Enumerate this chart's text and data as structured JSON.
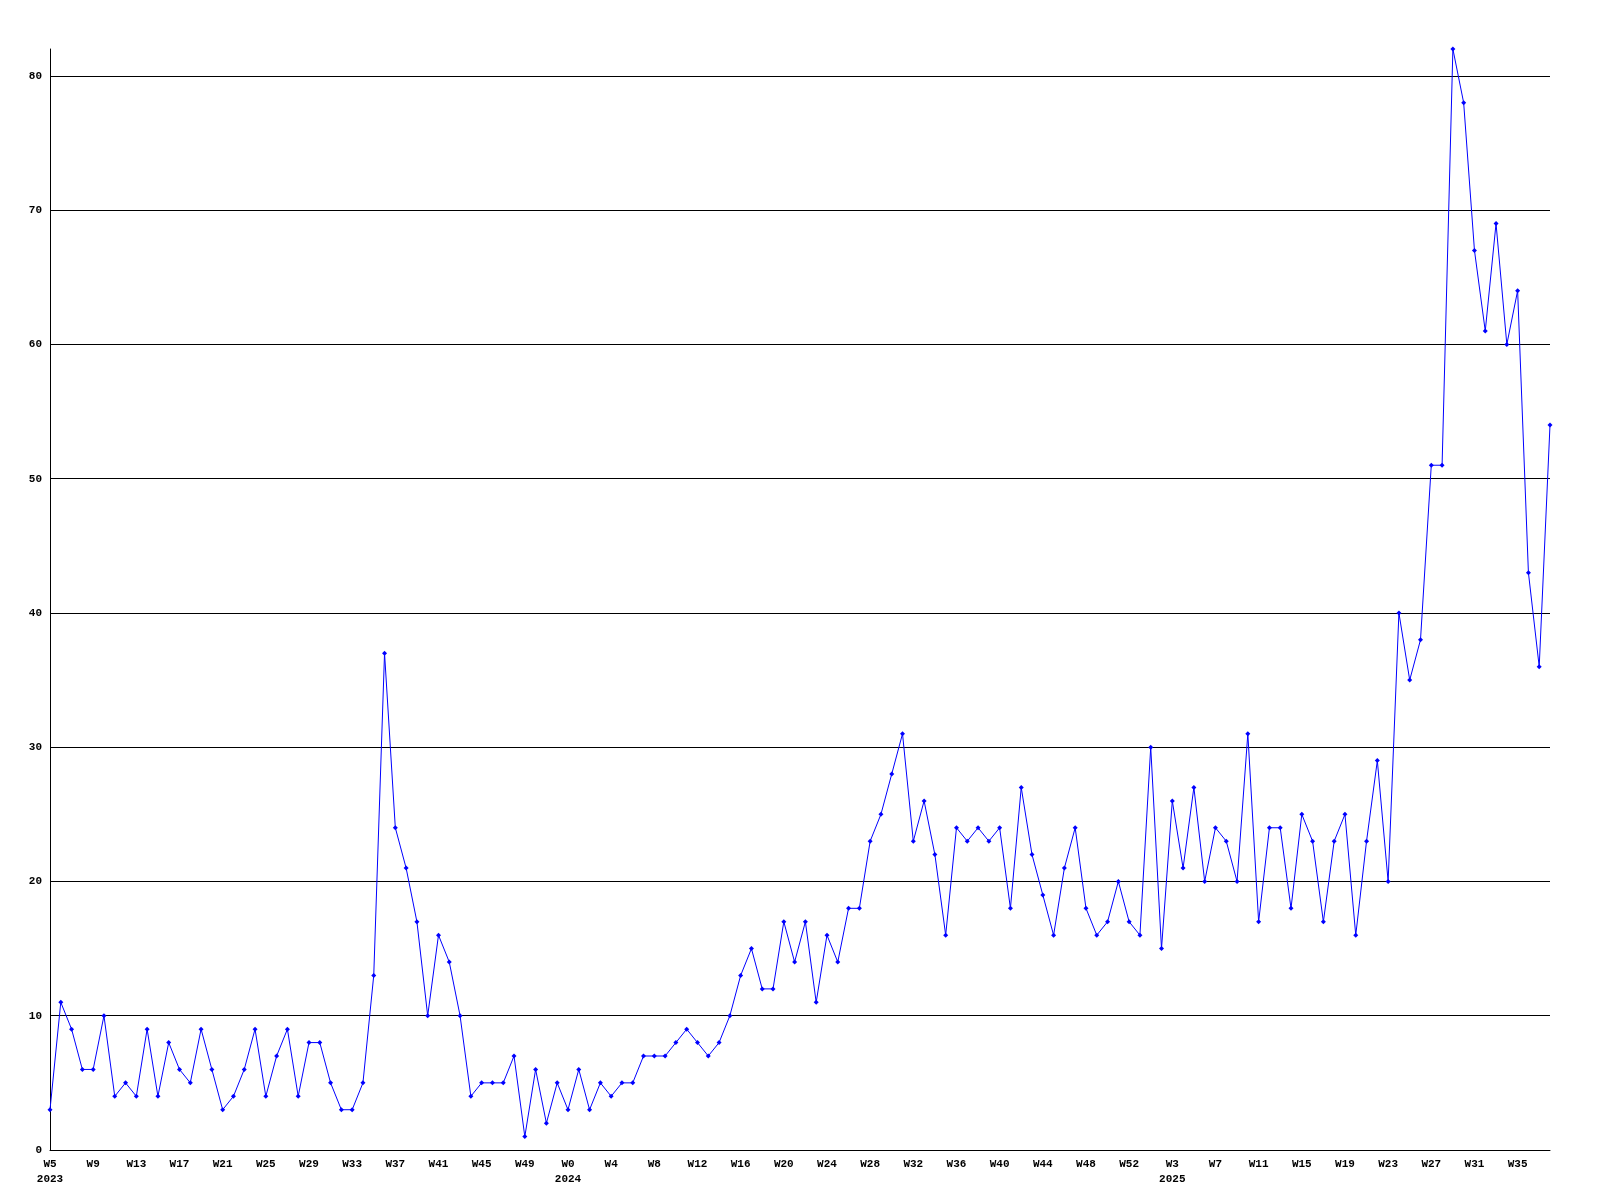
{
  "chart_data": {
    "type": "line",
    "categories": [
      "W5\n2023",
      null,
      null,
      null,
      "W9",
      null,
      null,
      null,
      "W13",
      null,
      null,
      null,
      "W17",
      null,
      null,
      null,
      "W21",
      null,
      null,
      null,
      "W25",
      null,
      null,
      null,
      "W29",
      null,
      null,
      null,
      "W33",
      null,
      null,
      null,
      "W37",
      null,
      null,
      null,
      "W41",
      null,
      null,
      null,
      "W45",
      null,
      null,
      null,
      "W49",
      null,
      null,
      null,
      "W0\n2024",
      null,
      null,
      null,
      "W4",
      null,
      null,
      null,
      "W8",
      null,
      null,
      null,
      "W12",
      null,
      null,
      null,
      "W16",
      null,
      null,
      null,
      "W20",
      null,
      null,
      null,
      "W24",
      null,
      null,
      null,
      "W28",
      null,
      null,
      null,
      "W32",
      null,
      null,
      null,
      "W36",
      null,
      null,
      null,
      "W40",
      null,
      null,
      null,
      "W44",
      null,
      null,
      null,
      "W48",
      null,
      null,
      null,
      "W52",
      null,
      null,
      null,
      "W3\n2025",
      null,
      null,
      null,
      "W7",
      null,
      null,
      null,
      "W11",
      null,
      null,
      null,
      "W15",
      null,
      null,
      null,
      "W19",
      null,
      null,
      null,
      "W23",
      null,
      null,
      null,
      "W27",
      null,
      null,
      null,
      "W31",
      null,
      null,
      null,
      "W35",
      null,
      null,
      null
    ],
    "series": [
      {
        "color": "#0000ff",
        "values": [
          3,
          11,
          9,
          6,
          6,
          10,
          4,
          5,
          4,
          9,
          4,
          8,
          6,
          5,
          9,
          6,
          3,
          4,
          6,
          9,
          4,
          7,
          9,
          4,
          8,
          8,
          5,
          3,
          3,
          5,
          13,
          37,
          24,
          21,
          17,
          10,
          16,
          14,
          10,
          4,
          5,
          5,
          5,
          7,
          1,
          6,
          2,
          5,
          3,
          6,
          3,
          5,
          4,
          5,
          5,
          7,
          7,
          7,
          8,
          9,
          8,
          7,
          8,
          10,
          13,
          15,
          12,
          12,
          17,
          14,
          17,
          11,
          16,
          14,
          18,
          18,
          23,
          25,
          28,
          31,
          23,
          26,
          22,
          16,
          24,
          23,
          24,
          23,
          24,
          18,
          27,
          22,
          19,
          16,
          21,
          24,
          18,
          16,
          17,
          20,
          17,
          16,
          30,
          15,
          26,
          21,
          27,
          20,
          24,
          23,
          20,
          31,
          17,
          24,
          24,
          18,
          25,
          23,
          17,
          23,
          25,
          16,
          23,
          29,
          20,
          40,
          35,
          38,
          51,
          51,
          82,
          78,
          67,
          61,
          69,
          60,
          64,
          43,
          36,
          54
        ]
      }
    ],
    "ylim": [
      0,
      82
    ],
    "yticks": [
      0,
      10,
      20,
      30,
      40,
      50,
      60,
      70,
      80
    ],
    "grid": "y",
    "marker": "diamond",
    "line_style": "solid"
  }
}
